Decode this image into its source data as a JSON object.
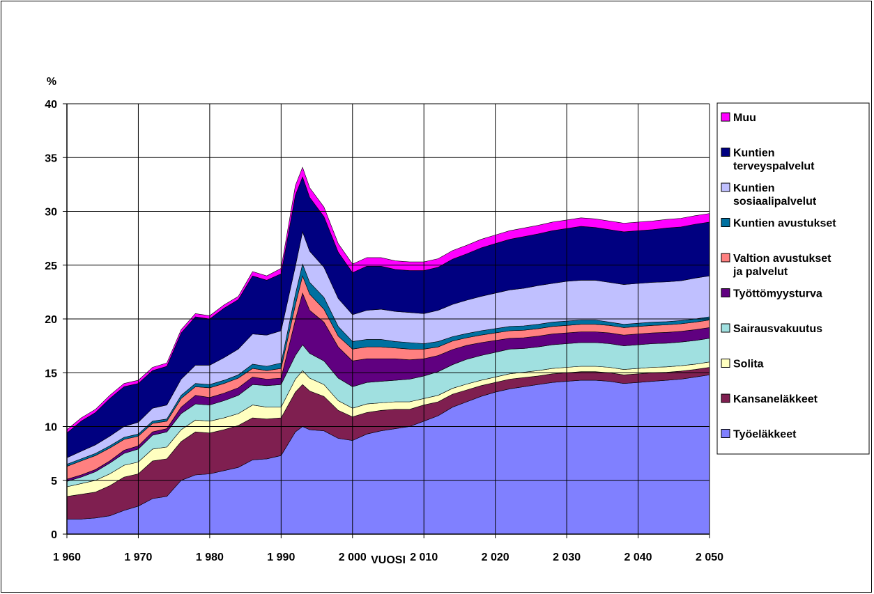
{
  "chart_data": {
    "type": "area",
    "stacked": true,
    "ylabel": "%",
    "xlabel": "VUOSI",
    "ylim": [
      0,
      40
    ],
    "xlim": [
      1960,
      2050
    ],
    "yticks": [
      0,
      5,
      10,
      15,
      20,
      25,
      30,
      35,
      40
    ],
    "xtick_values": [
      1960,
      1970,
      1980,
      1990,
      2000,
      2010,
      2020,
      2030,
      2040,
      2050
    ],
    "xtick_labels": [
      "1 960",
      "1 970",
      "1 980",
      "1 990",
      "2 000",
      "2 010",
      "2 020",
      "2 030",
      "2 040",
      "2 050"
    ],
    "grid": true,
    "legend_position": "right",
    "x": [
      1960,
      1962,
      1964,
      1966,
      1968,
      1970,
      1972,
      1974,
      1976,
      1978,
      1980,
      1982,
      1984,
      1986,
      1988,
      1990,
      1992,
      1993,
      1994,
      1996,
      1998,
      2000,
      2002,
      2004,
      2006,
      2008,
      2010,
      2012,
      2014,
      2016,
      2018,
      2020,
      2022,
      2024,
      2026,
      2028,
      2030,
      2032,
      2034,
      2036,
      2038,
      2040,
      2042,
      2044,
      2046,
      2048,
      2050
    ],
    "series": [
      {
        "name": "Työeläkkeet",
        "color": "#8080ff",
        "values": [
          1.4,
          1.4,
          1.5,
          1.7,
          2.2,
          2.6,
          3.3,
          3.5,
          5.0,
          5.5,
          5.6,
          5.9,
          6.2,
          6.9,
          7.0,
          7.3,
          9.5,
          10.0,
          9.7,
          9.6,
          8.9,
          8.7,
          9.3,
          9.6,
          9.8,
          10.0,
          10.5,
          11.0,
          11.8,
          12.3,
          12.8,
          13.2,
          13.5,
          13.7,
          13.9,
          14.1,
          14.2,
          14.3,
          14.3,
          14.2,
          14.0,
          14.1,
          14.2,
          14.3,
          14.4,
          14.6,
          14.8
        ]
      },
      {
        "name": "Kansaneläkkeet",
        "color": "#7f1f50",
        "values": [
          2.1,
          2.3,
          2.4,
          2.8,
          3.1,
          3.0,
          3.5,
          3.5,
          3.6,
          4.0,
          3.8,
          3.8,
          3.9,
          3.9,
          3.7,
          3.5,
          3.7,
          3.9,
          3.6,
          3.2,
          2.6,
          2.2,
          2.0,
          1.9,
          1.8,
          1.6,
          1.5,
          1.3,
          1.2,
          1.1,
          1.0,
          0.9,
          0.9,
          0.85,
          0.8,
          0.8,
          0.8,
          0.8,
          0.8,
          0.8,
          0.8,
          0.8,
          0.8,
          0.75,
          0.75,
          0.7,
          0.7
        ]
      },
      {
        "name": "Solita",
        "color": "#ffffc0",
        "values": [
          0.9,
          1.0,
          1.1,
          1.1,
          1.1,
          1.1,
          1.1,
          1.1,
          1.1,
          1.1,
          1.1,
          1.1,
          1.1,
          1.2,
          1.1,
          1.0,
          1.2,
          1.3,
          1.2,
          1.1,
          0.9,
          0.8,
          0.8,
          0.7,
          0.7,
          0.7,
          0.6,
          0.6,
          0.55,
          0.55,
          0.5,
          0.5,
          0.5,
          0.5,
          0.5,
          0.5,
          0.5,
          0.5,
          0.5,
          0.5,
          0.5,
          0.5,
          0.5,
          0.5,
          0.5,
          0.5,
          0.5
        ]
      },
      {
        "name": "Sairausvakuutus",
        "color": "#a0e0e0",
        "values": [
          0.5,
          0.6,
          0.8,
          1.0,
          1.1,
          1.2,
          1.3,
          1.4,
          1.5,
          1.5,
          1.5,
          1.6,
          1.7,
          1.9,
          2.0,
          2.1,
          2.2,
          2.4,
          2.3,
          2.2,
          2.1,
          2.0,
          2.0,
          2.0,
          2.0,
          2.1,
          2.1,
          2.2,
          2.2,
          2.3,
          2.3,
          2.3,
          2.3,
          2.2,
          2.2,
          2.2,
          2.2,
          2.2,
          2.2,
          2.2,
          2.2,
          2.2,
          2.2,
          2.2,
          2.2,
          2.2,
          2.2
        ]
      },
      {
        "name": "Työttömyysturva",
        "color": "#600080",
        "values": [
          0.2,
          0.2,
          0.2,
          0.2,
          0.3,
          0.3,
          0.3,
          0.3,
          0.6,
          0.8,
          0.7,
          0.7,
          0.7,
          0.7,
          0.6,
          0.6,
          3.3,
          4.8,
          4.0,
          3.6,
          2.9,
          2.4,
          2.2,
          2.1,
          2.0,
          1.8,
          1.6,
          1.5,
          1.4,
          1.3,
          1.2,
          1.1,
          1.0,
          1.0,
          1.0,
          1.0,
          1.0,
          1.0,
          1.0,
          1.0,
          1.0,
          1.0,
          1.0,
          1.0,
          1.0,
          1.0,
          1.0
        ]
      },
      {
        "name": "Valtion avustukset ja palvelut",
        "color": "#ff8080",
        "values": [
          1.2,
          1.3,
          1.3,
          1.2,
          1.0,
          0.9,
          0.8,
          0.7,
          0.8,
          0.8,
          0.9,
          0.9,
          0.9,
          0.8,
          0.8,
          0.9,
          1.4,
          1.6,
          1.5,
          1.2,
          1.0,
          1.1,
          1.1,
          1.1,
          1.0,
          1.0,
          0.9,
          0.8,
          0.8,
          0.7,
          0.7,
          0.7,
          0.7,
          0.7,
          0.7,
          0.7,
          0.7,
          0.7,
          0.7,
          0.7,
          0.7,
          0.7,
          0.7,
          0.7,
          0.7,
          0.7,
          0.7
        ]
      },
      {
        "name": "Kuntien avustukset",
        "color": "#0070a0",
        "values": [
          0.2,
          0.2,
          0.2,
          0.2,
          0.2,
          0.2,
          0.2,
          0.2,
          0.3,
          0.3,
          0.3,
          0.3,
          0.3,
          0.4,
          0.4,
          0.5,
          1.0,
          1.1,
          1.1,
          1.1,
          0.9,
          0.7,
          0.7,
          0.7,
          0.6,
          0.6,
          0.5,
          0.5,
          0.4,
          0.4,
          0.4,
          0.4,
          0.4,
          0.4,
          0.4,
          0.4,
          0.4,
          0.4,
          0.4,
          0.3,
          0.3,
          0.3,
          0.3,
          0.3,
          0.3,
          0.3,
          0.3
        ]
      },
      {
        "name": "Kuntien sosiaalipalvelut",
        "color": "#c0c0ff",
        "values": [
          0.6,
          0.7,
          0.8,
          0.9,
          1.0,
          1.1,
          1.2,
          1.3,
          1.5,
          1.7,
          1.8,
          2.1,
          2.4,
          2.8,
          2.9,
          3.0,
          2.6,
          3.0,
          2.9,
          2.8,
          2.6,
          2.5,
          2.7,
          2.8,
          2.8,
          2.8,
          2.8,
          2.9,
          3.0,
          3.1,
          3.2,
          3.3,
          3.4,
          3.5,
          3.6,
          3.6,
          3.7,
          3.7,
          3.7,
          3.7,
          3.7,
          3.7,
          3.7,
          3.7,
          3.7,
          3.8,
          3.8
        ]
      },
      {
        "name": "Kuntien terveyspalvelut",
        "color": "#000080",
        "values": [
          2.3,
          2.8,
          3.0,
          3.5,
          3.7,
          3.6,
          3.5,
          3.6,
          4.3,
          4.5,
          4.3,
          4.6,
          4.6,
          5.4,
          5.1,
          5.3,
          6.6,
          5.1,
          5.0,
          4.7,
          4.3,
          3.9,
          4.1,
          4.0,
          3.9,
          3.9,
          4.0,
          4.0,
          4.2,
          4.3,
          4.5,
          4.6,
          4.7,
          4.8,
          4.8,
          4.9,
          4.9,
          5.0,
          4.9,
          4.9,
          4.9,
          4.9,
          4.9,
          5.0,
          5.0,
          5.0,
          5.0
        ]
      },
      {
        "name": "Muu",
        "color": "#ff00ff",
        "values": [
          0.3,
          0.3,
          0.3,
          0.3,
          0.3,
          0.3,
          0.3,
          0.3,
          0.3,
          0.3,
          0.3,
          0.3,
          0.3,
          0.4,
          0.4,
          0.5,
          0.9,
          0.9,
          0.9,
          0.9,
          0.8,
          0.8,
          0.8,
          0.8,
          0.8,
          0.8,
          0.8,
          0.8,
          0.8,
          0.8,
          0.8,
          0.8,
          0.8,
          0.8,
          0.8,
          0.8,
          0.8,
          0.8,
          0.8,
          0.8,
          0.8,
          0.8,
          0.8,
          0.8,
          0.8,
          0.8,
          0.8
        ]
      }
    ],
    "legend": [
      {
        "lines": [
          "Muu"
        ],
        "color": "#ff00ff"
      },
      {
        "lines": [
          "Kuntien",
          "terveyspalvelut"
        ],
        "color": "#000080"
      },
      {
        "lines": [
          "Kuntien",
          "sosiaalipalvelut"
        ],
        "color": "#c0c0ff"
      },
      {
        "lines": [
          "Kuntien avustukset"
        ],
        "color": "#0070a0"
      },
      {
        "lines": [
          "Valtion avustukset",
          "ja palvelut"
        ],
        "color": "#ff8080"
      },
      {
        "lines": [
          "Työttömyysturva"
        ],
        "color": "#600080"
      },
      {
        "lines": [
          "Sairausvakuutus"
        ],
        "color": "#a0e0e0"
      },
      {
        "lines": [
          "Solita"
        ],
        "color": "#ffffc0"
      },
      {
        "lines": [
          "Kansaneläkkeet"
        ],
        "color": "#7f1f50"
      },
      {
        "lines": [
          "Työeläkkeet"
        ],
        "color": "#8080ff"
      }
    ]
  }
}
